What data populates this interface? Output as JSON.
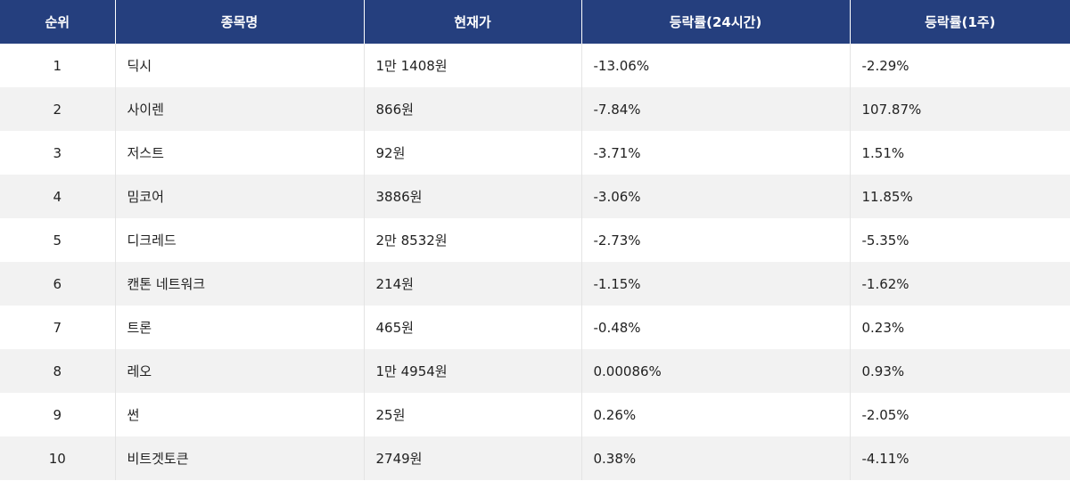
{
  "table": {
    "columns": [
      "순위",
      "종목명",
      "현재가",
      "등락률(24시간)",
      "등락률(1주)"
    ],
    "rows": [
      [
        "1",
        "딕시",
        "1만 1408원",
        "-13.06%",
        "-2.29%"
      ],
      [
        "2",
        "사이렌",
        "866원",
        "-7.84%",
        "107.87%"
      ],
      [
        "3",
        "저스트",
        "92원",
        "-3.71%",
        "1.51%"
      ],
      [
        "4",
        "밈코어",
        "3886원",
        "-3.06%",
        "11.85%"
      ],
      [
        "5",
        "디크레드",
        "2만 8532원",
        "-2.73%",
        "-5.35%"
      ],
      [
        "6",
        "캔톤 네트워크",
        "214원",
        "-1.15%",
        "-1.62%"
      ],
      [
        "7",
        "트론",
        "465원",
        "-0.48%",
        "0.23%"
      ],
      [
        "8",
        "레오",
        "1만 4954원",
        "0.00086%",
        "0.93%"
      ],
      [
        "9",
        "썬",
        "25원",
        "0.26%",
        "-2.05%"
      ],
      [
        "10",
        "비트겟토큰",
        "2749원",
        "0.38%",
        "-4.11%"
      ]
    ]
  }
}
